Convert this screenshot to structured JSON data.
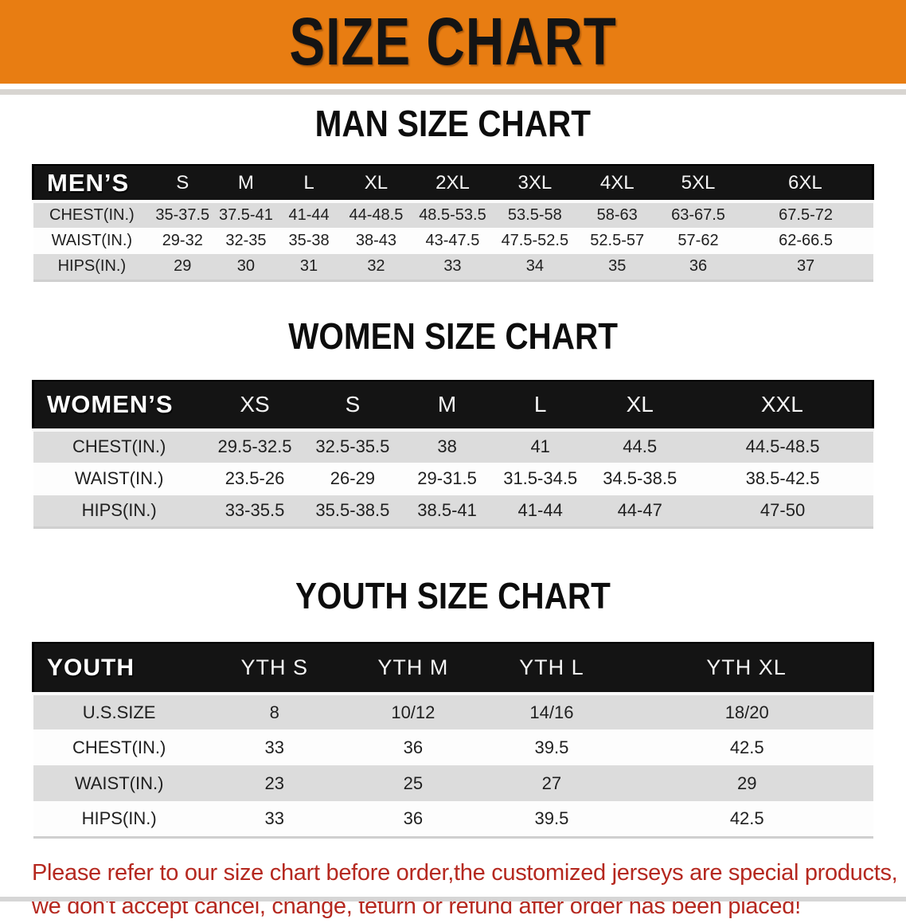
{
  "banner": {
    "title": "SIZE CHART",
    "bg_color": "#e87d12",
    "text_color": "#141414"
  },
  "colors": {
    "table_header_bg": "#141414",
    "table_header_text": "#ffffff",
    "shaded_row_bg": "#dcdcdc",
    "footer_text": "#b5281f"
  },
  "sections": [
    {
      "heading": "MAN SIZE CHART",
      "table": {
        "header_label": "MEN’S",
        "columns": [
          "S",
          "M",
          "L",
          "XL",
          "2XL",
          "3XL",
          "4XL",
          "5XL",
          "6XL"
        ],
        "rows": [
          {
            "label": "CHEST(IN.)",
            "values": [
              "35-37.5",
              "37.5-41",
              "41-44",
              "44-48.5",
              "48.5-53.5",
              "53.5-58",
              "58-63",
              "63-67.5",
              "67.5-72"
            ]
          },
          {
            "label": "WAIST(IN.)",
            "values": [
              "29-32",
              "32-35",
              "35-38",
              "38-43",
              "43-47.5",
              "47.5-52.5",
              "52.5-57",
              "57-62",
              "62-66.5"
            ]
          },
          {
            "label": "HIPS(IN.)",
            "values": [
              "29",
              "30",
              "31",
              "32",
              "33",
              "34",
              "35",
              "36",
              "37"
            ]
          }
        ]
      }
    },
    {
      "heading": "WOMEN SIZE CHART",
      "table": {
        "header_label": "WOMEN’S",
        "columns": [
          "XS",
          "S",
          "M",
          "L",
          "XL",
          "XXL"
        ],
        "rows": [
          {
            "label": "CHEST(IN.)",
            "values": [
              "29.5-32.5",
              "32.5-35.5",
              "38",
              "41",
              "44.5",
              "44.5-48.5"
            ]
          },
          {
            "label": "WAIST(IN.)",
            "values": [
              "23.5-26",
              "26-29",
              "29-31.5",
              "31.5-34.5",
              "34.5-38.5",
              "38.5-42.5"
            ]
          },
          {
            "label": "HIPS(IN.)",
            "values": [
              "33-35.5",
              "35.5-38.5",
              "38.5-41",
              "41-44",
              "44-47",
              "47-50"
            ]
          }
        ]
      }
    },
    {
      "heading": "YOUTH SIZE CHART",
      "table": {
        "header_label": "YOUTH",
        "columns": [
          "YTH S",
          "YTH M",
          "YTH L",
          "YTH XL"
        ],
        "rows": [
          {
            "label": "U.S.SIZE",
            "values": [
              "8",
              "10/12",
              "14/16",
              "18/20"
            ]
          },
          {
            "label": "CHEST(IN.)",
            "values": [
              "33",
              "36",
              "39.5",
              "42.5"
            ]
          },
          {
            "label": "WAIST(IN.)",
            "values": [
              "23",
              "25",
              "27",
              "29"
            ]
          },
          {
            "label": "HIPS(IN.)",
            "values": [
              "33",
              "36",
              "39.5",
              "42.5"
            ]
          }
        ]
      }
    }
  ],
  "footer_note": {
    "line1": "Please refer to our size chart before order,the customized jerseys are special products,",
    "line2": "we don't accept cancel, change, teturn or refund after order has been placed!"
  }
}
